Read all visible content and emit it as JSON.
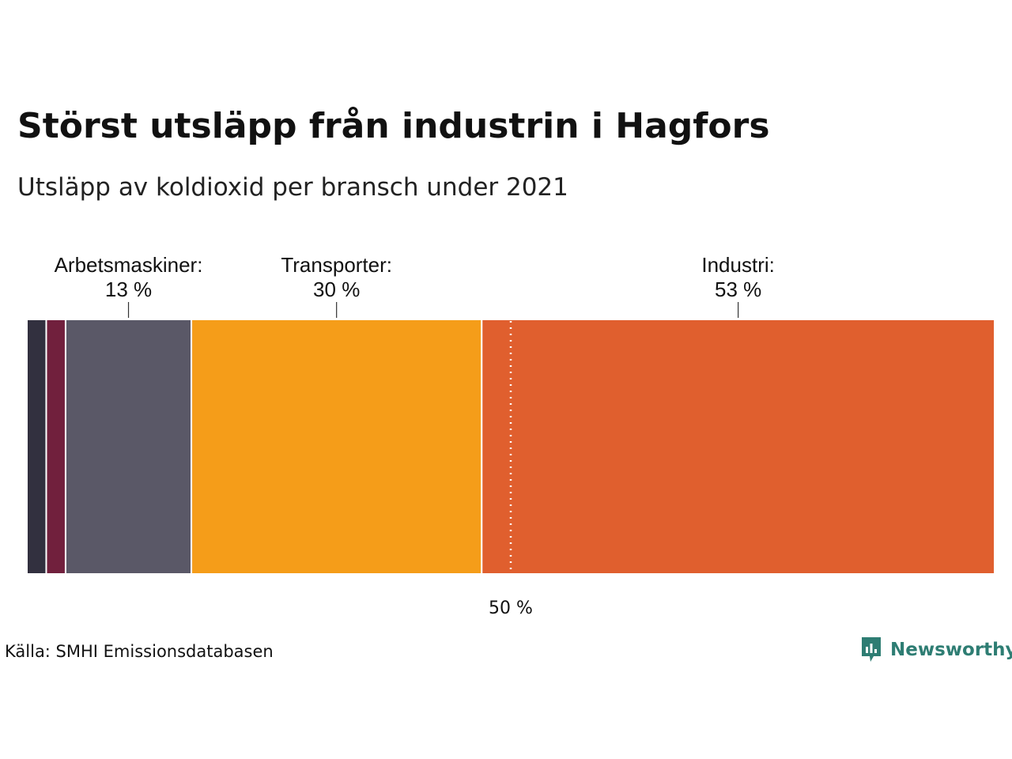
{
  "title": "Störst utsläpp från industrin i Hagfors",
  "subtitle": "Utsläpp av koldioxid per bransch under 2021",
  "source": "Källa: SMHI Emissionsdatabasen",
  "brand": {
    "name": "Newsworthy",
    "icon": "newsworthy-chart-icon",
    "color": "#2e7d73"
  },
  "chart_data": {
    "type": "bar",
    "orientation": "horizontal-stacked-100",
    "unit": "%",
    "reference_line": {
      "value": 50,
      "label": "50 %",
      "style": "dotted"
    },
    "segments": [
      {
        "value": 2,
        "color": "#32303f"
      },
      {
        "value": 2,
        "color": "#71203d"
      },
      {
        "name": "Arbetsmaskiner:",
        "value": 13,
        "value_label": "13 %",
        "color": "#5a5867"
      },
      {
        "name": "Transporter:",
        "value": 30,
        "value_label": "30 %",
        "color": "#f59d19"
      },
      {
        "name": "Industri:",
        "value": 53,
        "value_label": "53 %",
        "color": "#e05f2e"
      }
    ]
  }
}
